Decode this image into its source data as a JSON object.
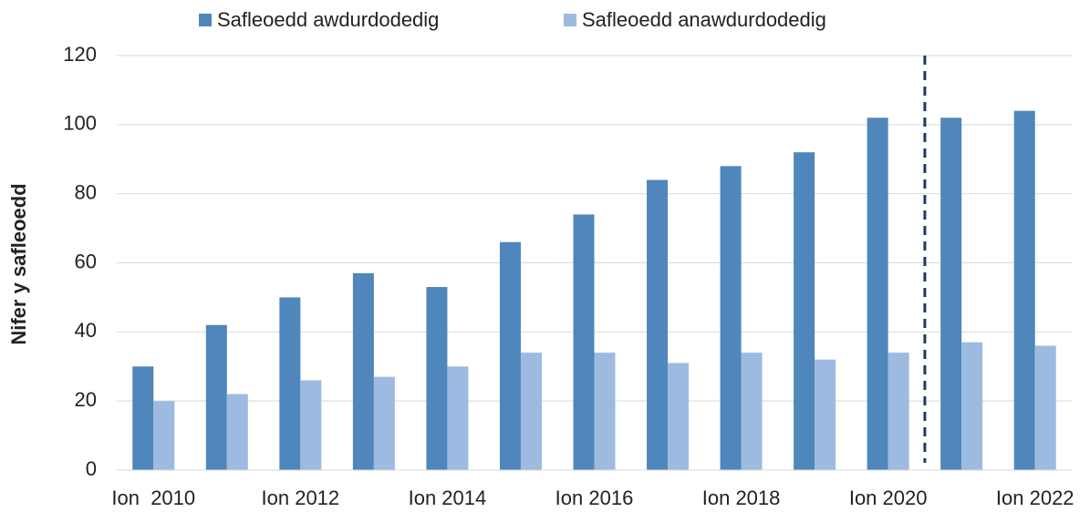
{
  "chart_data": {
    "type": "bar",
    "y_label": "Nifer y safleoedd",
    "categories": [
      "Ion  2010",
      null,
      "Ion 2012",
      null,
      "Ion 2014",
      null,
      "Ion 2016",
      null,
      "Ion 2018",
      null,
      "Ion 2020",
      null,
      "Ion 2022"
    ],
    "series": [
      {
        "name": "Safleoedd awdurdodedig",
        "color": "#4f86bb",
        "values": [
          30,
          42,
          50,
          57,
          53,
          66,
          74,
          84,
          88,
          92,
          102,
          102,
          104
        ]
      },
      {
        "name": "Safleoedd anawdurdodedig",
        "color": "#9dbbe0",
        "values": [
          20,
          22,
          26,
          27,
          30,
          34,
          34,
          31,
          34,
          32,
          34,
          37,
          36
        ]
      }
    ],
    "ylim": [
      0,
      120
    ],
    "yticks": [
      0,
      20,
      40,
      60,
      80,
      100,
      120
    ],
    "grid": true,
    "legend": "top"
  }
}
